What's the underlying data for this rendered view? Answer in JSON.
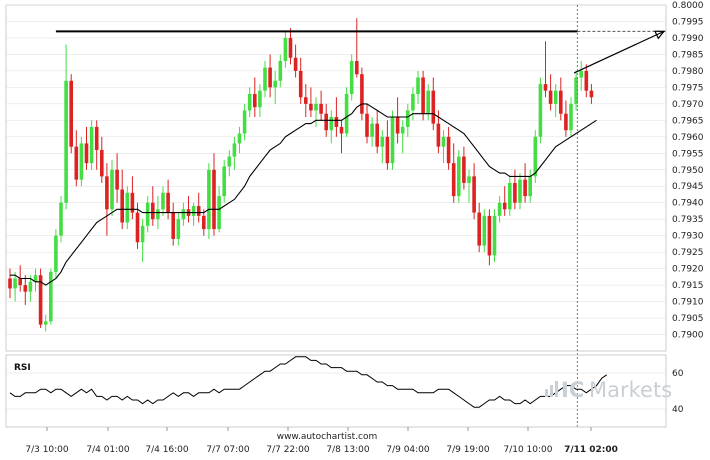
{
  "brand": {
    "ic": "IC",
    "markets": "Markets",
    "footer": "www.autochartist.com"
  },
  "rsi_panel": {
    "title": "RSI",
    "ticks": [
      "60",
      "40"
    ],
    "values": [
      60,
      40
    ]
  },
  "colors": {
    "bull": "#44dd44",
    "bear": "#dd2222",
    "line": "#000000",
    "grid": "#dddddd"
  },
  "chart_data": {
    "type": "candlestick",
    "ylim": [
      0.7895,
      0.8
    ],
    "y_ticks": [
      "0.8000",
      "0.7995",
      "0.7990",
      "0.7985",
      "0.7980",
      "0.7975",
      "0.7970",
      "0.7965",
      "0.7960",
      "0.7955",
      "0.7950",
      "0.7945",
      "0.7940",
      "0.7935",
      "0.7930",
      "0.7925",
      "0.7920",
      "0.7915",
      "0.7910",
      "0.7905",
      "0.7900"
    ],
    "x_ticks": [
      "7/3 10:00",
      "7/4 01:00",
      "7/4 16:00",
      "7/7 07:00",
      "7/7 22:00",
      "7/8 13:00",
      "7/9 04:00",
      "7/9 19:00",
      "7/10 10:00",
      "7/11 02:00"
    ],
    "x_tick_bold_index": 9,
    "resistance_level": 0.7992,
    "candles_ohlc": [
      [
        0.7917,
        0.792,
        0.7911,
        0.7914
      ],
      [
        0.7914,
        0.7919,
        0.791,
        0.7917
      ],
      [
        0.7917,
        0.7921,
        0.7913,
        0.7915
      ],
      [
        0.7915,
        0.7918,
        0.7909,
        0.7913
      ],
      [
        0.7913,
        0.7918,
        0.791,
        0.7916
      ],
      [
        0.7916,
        0.792,
        0.7913,
        0.7918
      ],
      [
        0.7918,
        0.792,
        0.7902,
        0.7903
      ],
      [
        0.7903,
        0.7906,
        0.7901,
        0.7904
      ],
      [
        0.7904,
        0.792,
        0.7903,
        0.7919
      ],
      [
        0.7919,
        0.7932,
        0.7917,
        0.793
      ],
      [
        0.793,
        0.7942,
        0.7928,
        0.794
      ],
      [
        0.794,
        0.7988,
        0.7938,
        0.7977
      ],
      [
        0.7977,
        0.7979,
        0.7955,
        0.7957
      ],
      [
        0.7957,
        0.7962,
        0.7945,
        0.7947
      ],
      [
        0.7947,
        0.796,
        0.7945,
        0.7958
      ],
      [
        0.7958,
        0.7963,
        0.795,
        0.7952
      ],
      [
        0.7952,
        0.7965,
        0.795,
        0.7963
      ],
      [
        0.7963,
        0.7965,
        0.795,
        0.7956
      ],
      [
        0.7956,
        0.796,
        0.7946,
        0.7948
      ],
      [
        0.7948,
        0.7952,
        0.793,
        0.7938
      ],
      [
        0.7938,
        0.7953,
        0.7936,
        0.795
      ],
      [
        0.795,
        0.7955,
        0.794,
        0.7944
      ],
      [
        0.7944,
        0.795,
        0.7932,
        0.7934
      ],
      [
        0.7934,
        0.7945,
        0.7932,
        0.7943
      ],
      [
        0.7943,
        0.7948,
        0.7935,
        0.7937
      ],
      [
        0.7937,
        0.794,
        0.7926,
        0.7928
      ],
      [
        0.7928,
        0.7935,
        0.7922,
        0.7933
      ],
      [
        0.7933,
        0.7942,
        0.7931,
        0.794
      ],
      [
        0.794,
        0.7945,
        0.7933,
        0.7935
      ],
      [
        0.7935,
        0.7942,
        0.7932,
        0.7938
      ],
      [
        0.7938,
        0.7945,
        0.7936,
        0.7943
      ],
      [
        0.7943,
        0.7947,
        0.7935,
        0.7937
      ],
      [
        0.7937,
        0.794,
        0.7927,
        0.7929
      ],
      [
        0.7929,
        0.7937,
        0.7927,
        0.7935
      ],
      [
        0.7935,
        0.794,
        0.7933,
        0.7938
      ],
      [
        0.7938,
        0.7942,
        0.7934,
        0.7936
      ],
      [
        0.7936,
        0.794,
        0.7933,
        0.7939
      ],
      [
        0.7939,
        0.7943,
        0.7934,
        0.7936
      ],
      [
        0.7936,
        0.7938,
        0.793,
        0.7932
      ],
      [
        0.7932,
        0.7952,
        0.7929,
        0.795
      ],
      [
        0.795,
        0.7955,
        0.793,
        0.7932
      ],
      [
        0.7932,
        0.7945,
        0.7931,
        0.7942
      ],
      [
        0.7942,
        0.7953,
        0.794,
        0.7951
      ],
      [
        0.7951,
        0.7956,
        0.7948,
        0.7954
      ],
      [
        0.7954,
        0.796,
        0.795,
        0.7958
      ],
      [
        0.7958,
        0.7963,
        0.7955,
        0.7961
      ],
      [
        0.7961,
        0.797,
        0.7959,
        0.7968
      ],
      [
        0.7968,
        0.7975,
        0.7966,
        0.7973
      ],
      [
        0.7973,
        0.7978,
        0.7966,
        0.7969
      ],
      [
        0.7969,
        0.7976,
        0.7966,
        0.7974
      ],
      [
        0.7974,
        0.7983,
        0.7972,
        0.7981
      ],
      [
        0.7981,
        0.7985,
        0.7972,
        0.7975
      ],
      [
        0.7975,
        0.798,
        0.797,
        0.7977
      ],
      [
        0.7977,
        0.7985,
        0.7975,
        0.7983
      ],
      [
        0.7983,
        0.7992,
        0.7981,
        0.799
      ],
      [
        0.799,
        0.7993,
        0.7982,
        0.7984
      ],
      [
        0.7984,
        0.7988,
        0.7978,
        0.798
      ],
      [
        0.798,
        0.7984,
        0.797,
        0.7972
      ],
      [
        0.7972,
        0.7976,
        0.7966,
        0.797
      ],
      [
        0.797,
        0.7975,
        0.7966,
        0.7968
      ],
      [
        0.7968,
        0.7972,
        0.7963,
        0.797
      ],
      [
        0.797,
        0.7974,
        0.7965,
        0.7967
      ],
      [
        0.7967,
        0.797,
        0.796,
        0.7962
      ],
      [
        0.7962,
        0.7968,
        0.7958,
        0.7966
      ],
      [
        0.7966,
        0.7972,
        0.796,
        0.7963
      ],
      [
        0.7963,
        0.7965,
        0.7955,
        0.7961
      ],
      [
        0.7961,
        0.7975,
        0.796,
        0.7973
      ],
      [
        0.7973,
        0.7985,
        0.7971,
        0.7983
      ],
      [
        0.7983,
        0.7996,
        0.7978,
        0.7979
      ],
      [
        0.7979,
        0.7981,
        0.7965,
        0.7967
      ],
      [
        0.7967,
        0.797,
        0.7958,
        0.796
      ],
      [
        0.796,
        0.7966,
        0.7957,
        0.7964
      ],
      [
        0.7964,
        0.7968,
        0.7955,
        0.7957
      ],
      [
        0.7957,
        0.7962,
        0.7952,
        0.796
      ],
      [
        0.796,
        0.7965,
        0.795,
        0.7952
      ],
      [
        0.7952,
        0.7968,
        0.795,
        0.7966
      ],
      [
        0.7966,
        0.7972,
        0.7958,
        0.7961
      ],
      [
        0.7961,
        0.7965,
        0.7955,
        0.7963
      ],
      [
        0.7963,
        0.797,
        0.796,
        0.7968
      ],
      [
        0.7968,
        0.7975,
        0.7965,
        0.7973
      ],
      [
        0.7973,
        0.798,
        0.797,
        0.7978
      ],
      [
        0.7978,
        0.798,
        0.7965,
        0.7967
      ],
      [
        0.7967,
        0.7976,
        0.7965,
        0.7974
      ],
      [
        0.7974,
        0.7978,
        0.7962,
        0.7964
      ],
      [
        0.7964,
        0.7968,
        0.7955,
        0.7957
      ],
      [
        0.7957,
        0.7962,
        0.7952,
        0.796
      ],
      [
        0.796,
        0.7963,
        0.795,
        0.7952
      ],
      [
        0.7952,
        0.7958,
        0.794,
        0.7942
      ],
      [
        0.7942,
        0.7956,
        0.794,
        0.7954
      ],
      [
        0.7954,
        0.7957,
        0.7944,
        0.7946
      ],
      [
        0.7946,
        0.795,
        0.794,
        0.7948
      ],
      [
        0.7948,
        0.7952,
        0.7935,
        0.7937
      ],
      [
        0.7937,
        0.794,
        0.7925,
        0.7927
      ],
      [
        0.7927,
        0.7938,
        0.7925,
        0.7936
      ],
      [
        0.7936,
        0.7938,
        0.7921,
        0.7924
      ],
      [
        0.7924,
        0.7938,
        0.7922,
        0.7936
      ],
      [
        0.7936,
        0.7942,
        0.7934,
        0.794
      ],
      [
        0.794,
        0.7945,
        0.7936,
        0.7938
      ],
      [
        0.7938,
        0.7948,
        0.7936,
        0.7946
      ],
      [
        0.7946,
        0.795,
        0.7938,
        0.794
      ],
      [
        0.794,
        0.7949,
        0.7938,
        0.7947
      ],
      [
        0.7947,
        0.7952,
        0.794,
        0.7942
      ],
      [
        0.7942,
        0.795,
        0.794,
        0.7948
      ],
      [
        0.7948,
        0.7962,
        0.7946,
        0.796
      ],
      [
        0.796,
        0.7978,
        0.7958,
        0.7976
      ],
      [
        0.7976,
        0.7989,
        0.7972,
        0.7974
      ],
      [
        0.7974,
        0.7979,
        0.7968,
        0.797
      ],
      [
        0.797,
        0.7976,
        0.7966,
        0.7974
      ],
      [
        0.7974,
        0.7978,
        0.7965,
        0.7967
      ],
      [
        0.7967,
        0.7971,
        0.796,
        0.7962
      ],
      [
        0.7962,
        0.7972,
        0.796,
        0.797
      ],
      [
        0.797,
        0.798,
        0.7968,
        0.7978
      ],
      [
        0.7978,
        0.7983,
        0.7974,
        0.798
      ],
      [
        0.798,
        0.7982,
        0.7972,
        0.7974
      ],
      [
        0.7974,
        0.7976,
        0.797,
        0.7972
      ]
    ],
    "moving_average": [
      0.7918,
      0.7918,
      0.7917,
      0.7917,
      0.7917,
      0.7916,
      0.7916,
      0.7915,
      0.7916,
      0.7917,
      0.7919,
      0.7922,
      0.7924,
      0.7926,
      0.7928,
      0.793,
      0.7932,
      0.7934,
      0.7935,
      0.7936,
      0.7937,
      0.7938,
      0.7938,
      0.7938,
      0.7938,
      0.7938,
      0.7937,
      0.7937,
      0.7937,
      0.7937,
      0.7937,
      0.7937,
      0.7937,
      0.7937,
      0.7937,
      0.7937,
      0.7937,
      0.7937,
      0.7937,
      0.7938,
      0.7938,
      0.7938,
      0.7939,
      0.794,
      0.7941,
      0.7943,
      0.7945,
      0.7948,
      0.795,
      0.7952,
      0.7954,
      0.7956,
      0.7957,
      0.7958,
      0.796,
      0.7961,
      0.7962,
      0.7963,
      0.7964,
      0.7964,
      0.7965,
      0.7965,
      0.7965,
      0.7965,
      0.7965,
      0.7965,
      0.7966,
      0.7967,
      0.7969,
      0.797,
      0.797,
      0.7969,
      0.7968,
      0.7967,
      0.7966,
      0.7966,
      0.7966,
      0.7966,
      0.7966,
      0.7967,
      0.7967,
      0.7967,
      0.7967,
      0.7967,
      0.7966,
      0.7965,
      0.7964,
      0.7963,
      0.7962,
      0.7961,
      0.7959,
      0.7957,
      0.7955,
      0.7953,
      0.7951,
      0.795,
      0.7949,
      0.7949,
      0.7948,
      0.7948,
      0.7948,
      0.7948,
      0.7948,
      0.7949,
      0.7951,
      0.7953,
      0.7955,
      0.7957,
      0.7958,
      0.7959,
      0.796,
      0.7961,
      0.7962,
      0.7963,
      0.7964,
      0.7965
    ],
    "rsi": [
      49,
      47,
      47,
      49,
      49,
      49,
      51,
      51,
      49,
      51,
      51,
      49,
      47,
      49,
      51,
      49,
      51,
      47,
      47,
      45,
      47,
      47,
      45,
      47,
      45,
      45,
      43,
      45,
      43,
      45,
      45,
      47,
      49,
      47,
      49,
      49,
      47,
      49,
      49,
      49,
      51,
      49,
      51,
      51,
      51,
      51,
      53,
      55,
      57,
      59,
      61,
      61,
      63,
      65,
      65,
      67,
      69,
      69,
      69,
      67,
      67,
      65,
      65,
      63,
      63,
      63,
      61,
      61,
      61,
      59,
      59,
      57,
      55,
      55,
      53,
      53,
      51,
      51,
      51,
      51,
      49,
      49,
      49,
      49,
      51,
      51,
      51,
      49,
      47,
      45,
      43,
      41,
      41,
      43,
      45,
      45,
      47,
      45,
      45,
      43,
      43,
      45,
      43,
      45,
      47,
      47,
      47,
      49,
      51,
      53,
      53,
      51,
      51,
      49,
      51,
      53,
      57,
      59
    ]
  }
}
